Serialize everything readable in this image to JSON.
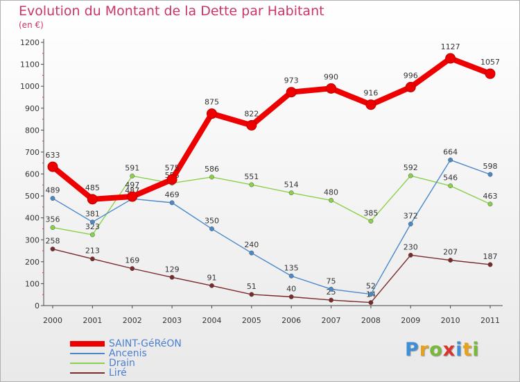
{
  "title": "Evolution du Montant de la Dette par Habitant",
  "unit": "(en €)",
  "chart_data": {
    "type": "line",
    "title": "Evolution du Montant de la Dette par Habitant",
    "ylabel": "(en €)",
    "x": [
      "2000",
      "2001",
      "2002",
      "2003",
      "2004",
      "2005",
      "2006",
      "2007",
      "2008",
      "2009",
      "2010",
      "2011"
    ],
    "ylim": [
      0,
      1200
    ],
    "yticks": [
      "0",
      "100",
      "200",
      "300",
      "400",
      "500",
      "600",
      "700",
      "800",
      "900",
      "1000",
      "1100",
      "1200"
    ],
    "grid": false,
    "series": [
      {
        "name": "SAINT-GéRéON",
        "color": "#ee0000",
        "values": [
          633,
          485,
          497,
          575,
          875,
          822,
          973,
          990,
          916,
          996,
          1127,
          1057
        ]
      },
      {
        "name": "Ancenis",
        "color": "#4a88c8",
        "values": [
          489,
          381,
          487,
          469,
          350,
          240,
          135,
          75,
          52,
          372,
          664,
          598
        ]
      },
      {
        "name": "Drain",
        "color": "#8bd04a",
        "values": [
          356,
          323,
          591,
          558,
          586,
          551,
          514,
          480,
          385,
          592,
          546,
          463
        ]
      },
      {
        "name": "Liré",
        "color": "#7a2a2a",
        "values": [
          258,
          213,
          169,
          129,
          91,
          51,
          40,
          25,
          14,
          230,
          207,
          187
        ]
      }
    ],
    "legend_position": "bottom-left"
  },
  "legend": [
    {
      "label": "SAINT-GéRéON",
      "color": "#ee0000"
    },
    {
      "label": "Ancenis",
      "color": "#4a88c8"
    },
    {
      "label": "Drain",
      "color": "#8bd04a"
    },
    {
      "label": "Liré",
      "color": "#7a2a2a"
    }
  ],
  "logo": {
    "letters": [
      {
        "ch": "P",
        "color": "#3f8fd6"
      },
      {
        "ch": "r",
        "color": "#e8a21a"
      },
      {
        "ch": "o",
        "color": "#79b93a"
      },
      {
        "ch": "x",
        "color": "#d9342b"
      },
      {
        "ch": "i",
        "color": "#3f8fd6"
      },
      {
        "ch": "t",
        "color": "#e8a21a"
      },
      {
        "ch": "i",
        "color": "#79b93a"
      }
    ]
  }
}
